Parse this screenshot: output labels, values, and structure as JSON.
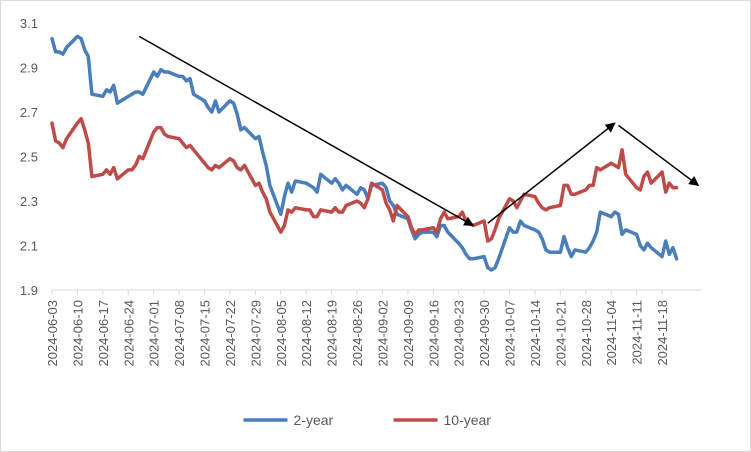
{
  "chart_data": {
    "type": "line",
    "title": "",
    "xlabel": "",
    "ylabel": "",
    "ylim": [
      1.9,
      3.1
    ],
    "y_ticks": [
      "1.9",
      "2.1",
      "2.3",
      "2.5",
      "2.7",
      "2.9",
      "3.1"
    ],
    "x_tick_labels": [
      "2024-06-03",
      "2024-06-10",
      "2024-06-17",
      "2024-06-24",
      "2024-07-01",
      "2024-07-08",
      "2024-07-15",
      "2024-07-22",
      "2024-07-29",
      "2024-08-05",
      "2024-08-12",
      "2024-08-19",
      "2024-08-26",
      "2024-09-02",
      "2024-09-09",
      "2024-09-16",
      "2024-09-23",
      "2024-09-30",
      "2024-10-07",
      "2024-10-14",
      "2024-10-21",
      "2024-10-28",
      "2024-11-04",
      "2024-11-11",
      "2024-11-18"
    ],
    "x_range": [
      "2024-06-03",
      "2024-11-29"
    ],
    "grid": false,
    "legend": "bottom",
    "series": [
      {
        "name": "2-year",
        "color": "#4a7ebb",
        "points": [
          [
            "2024-06-03",
            3.03
          ],
          [
            "2024-06-04",
            2.97
          ],
          [
            "2024-06-05",
            2.97
          ],
          [
            "2024-06-06",
            2.96
          ],
          [
            "2024-06-07",
            2.99
          ],
          [
            "2024-06-10",
            3.04
          ],
          [
            "2024-06-11",
            3.03
          ],
          [
            "2024-06-12",
            2.98
          ],
          [
            "2024-06-13",
            2.95
          ],
          [
            "2024-06-14",
            2.78
          ],
          [
            "2024-06-17",
            2.77
          ],
          [
            "2024-06-18",
            2.8
          ],
          [
            "2024-06-19",
            2.79
          ],
          [
            "2024-06-20",
            2.82
          ],
          [
            "2024-06-21",
            2.74
          ],
          [
            "2024-06-24",
            2.77
          ],
          [
            "2024-06-25",
            2.78
          ],
          [
            "2024-06-26",
            2.79
          ],
          [
            "2024-06-27",
            2.79
          ],
          [
            "2024-06-28",
            2.78
          ],
          [
            "2024-07-01",
            2.88
          ],
          [
            "2024-07-02",
            2.86
          ],
          [
            "2024-07-03",
            2.89
          ],
          [
            "2024-07-04",
            2.88
          ],
          [
            "2024-07-05",
            2.88
          ],
          [
            "2024-07-08",
            2.86
          ],
          [
            "2024-07-09",
            2.86
          ],
          [
            "2024-07-10",
            2.84
          ],
          [
            "2024-07-11",
            2.85
          ],
          [
            "2024-07-12",
            2.78
          ],
          [
            "2024-07-15",
            2.75
          ],
          [
            "2024-07-16",
            2.72
          ],
          [
            "2024-07-17",
            2.7
          ],
          [
            "2024-07-18",
            2.75
          ],
          [
            "2024-07-19",
            2.7
          ],
          [
            "2024-07-22",
            2.75
          ],
          [
            "2024-07-23",
            2.74
          ],
          [
            "2024-07-24",
            2.69
          ],
          [
            "2024-07-25",
            2.62
          ],
          [
            "2024-07-26",
            2.63
          ],
          [
            "2024-07-29",
            2.58
          ],
          [
            "2024-07-30",
            2.59
          ],
          [
            "2024-07-31",
            2.52
          ],
          [
            "2024-08-01",
            2.46
          ],
          [
            "2024-08-02",
            2.37
          ],
          [
            "2024-08-05",
            2.24
          ],
          [
            "2024-08-06",
            2.32
          ],
          [
            "2024-08-07",
            2.38
          ],
          [
            "2024-08-08",
            2.34
          ],
          [
            "2024-08-09",
            2.39
          ],
          [
            "2024-08-12",
            2.38
          ],
          [
            "2024-08-13",
            2.37
          ],
          [
            "2024-08-14",
            2.36
          ],
          [
            "2024-08-15",
            2.34
          ],
          [
            "2024-08-16",
            2.42
          ],
          [
            "2024-08-19",
            2.38
          ],
          [
            "2024-08-20",
            2.4
          ],
          [
            "2024-08-21",
            2.38
          ],
          [
            "2024-08-22",
            2.35
          ],
          [
            "2024-08-23",
            2.37
          ],
          [
            "2024-08-26",
            2.33
          ],
          [
            "2024-08-27",
            2.36
          ],
          [
            "2024-08-28",
            2.35
          ],
          [
            "2024-08-29",
            2.31
          ],
          [
            "2024-08-30",
            2.37
          ],
          [
            "2024-09-02",
            2.38
          ],
          [
            "2024-09-03",
            2.36
          ],
          [
            "2024-09-04",
            2.3
          ],
          [
            "2024-09-05",
            2.28
          ],
          [
            "2024-09-06",
            2.24
          ],
          [
            "2024-09-09",
            2.22
          ],
          [
            "2024-09-10",
            2.17
          ],
          [
            "2024-09-11",
            2.13
          ],
          [
            "2024-09-12",
            2.15
          ],
          [
            "2024-09-13",
            2.16
          ],
          [
            "2024-09-16",
            2.16
          ],
          [
            "2024-09-17",
            2.14
          ],
          [
            "2024-09-18",
            2.19
          ],
          [
            "2024-09-19",
            2.19
          ],
          [
            "2024-09-20",
            2.16
          ],
          [
            "2024-09-23",
            2.11
          ],
          [
            "2024-09-24",
            2.09
          ],
          [
            "2024-09-25",
            2.06
          ],
          [
            "2024-09-26",
            2.04
          ],
          [
            "2024-09-27",
            2.04
          ],
          [
            "2024-09-30",
            2.05
          ],
          [
            "2024-10-01",
            2.0
          ],
          [
            "2024-10-02",
            1.99
          ],
          [
            "2024-10-03",
            2.0
          ],
          [
            "2024-10-04",
            2.04
          ],
          [
            "2024-10-07",
            2.18
          ],
          [
            "2024-10-08",
            2.16
          ],
          [
            "2024-10-09",
            2.16
          ],
          [
            "2024-10-10",
            2.21
          ],
          [
            "2024-10-11",
            2.19
          ],
          [
            "2024-10-14",
            2.17
          ],
          [
            "2024-10-15",
            2.16
          ],
          [
            "2024-10-16",
            2.13
          ],
          [
            "2024-10-17",
            2.08
          ],
          [
            "2024-10-18",
            2.07
          ],
          [
            "2024-10-21",
            2.07
          ],
          [
            "2024-10-22",
            2.14
          ],
          [
            "2024-10-23",
            2.09
          ],
          [
            "2024-10-24",
            2.05
          ],
          [
            "2024-10-25",
            2.08
          ],
          [
            "2024-10-28",
            2.07
          ],
          [
            "2024-10-29",
            2.09
          ],
          [
            "2024-10-30",
            2.12
          ],
          [
            "2024-10-31",
            2.16
          ],
          [
            "2024-11-01",
            2.25
          ],
          [
            "2024-11-04",
            2.23
          ],
          [
            "2024-11-05",
            2.25
          ],
          [
            "2024-11-06",
            2.24
          ],
          [
            "2024-11-07",
            2.15
          ],
          [
            "2024-11-08",
            2.17
          ],
          [
            "2024-11-11",
            2.15
          ],
          [
            "2024-11-12",
            2.1
          ],
          [
            "2024-11-13",
            2.08
          ],
          [
            "2024-11-14",
            2.11
          ],
          [
            "2024-11-15",
            2.09
          ],
          [
            "2024-11-18",
            2.05
          ],
          [
            "2024-11-19",
            2.12
          ],
          [
            "2024-11-20",
            2.06
          ],
          [
            "2024-11-21",
            2.09
          ],
          [
            "2024-11-22",
            2.04
          ]
        ]
      },
      {
        "name": "10-year",
        "color": "#be4b48",
        "points": [
          [
            "2024-06-03",
            2.65
          ],
          [
            "2024-06-04",
            2.57
          ],
          [
            "2024-06-05",
            2.56
          ],
          [
            "2024-06-06",
            2.54
          ],
          [
            "2024-06-07",
            2.58
          ],
          [
            "2024-06-10",
            2.65
          ],
          [
            "2024-06-11",
            2.67
          ],
          [
            "2024-06-12",
            2.62
          ],
          [
            "2024-06-13",
            2.56
          ],
          [
            "2024-06-14",
            2.41
          ],
          [
            "2024-06-17",
            2.42
          ],
          [
            "2024-06-18",
            2.44
          ],
          [
            "2024-06-19",
            2.42
          ],
          [
            "2024-06-20",
            2.45
          ],
          [
            "2024-06-21",
            2.4
          ],
          [
            "2024-06-24",
            2.44
          ],
          [
            "2024-06-25",
            2.44
          ],
          [
            "2024-06-26",
            2.46
          ],
          [
            "2024-06-27",
            2.5
          ],
          [
            "2024-06-28",
            2.49
          ],
          [
            "2024-07-01",
            2.61
          ],
          [
            "2024-07-02",
            2.63
          ],
          [
            "2024-07-03",
            2.63
          ],
          [
            "2024-07-04",
            2.6
          ],
          [
            "2024-07-05",
            2.59
          ],
          [
            "2024-07-08",
            2.58
          ],
          [
            "2024-07-09",
            2.56
          ],
          [
            "2024-07-10",
            2.54
          ],
          [
            "2024-07-11",
            2.55
          ],
          [
            "2024-07-12",
            2.53
          ],
          [
            "2024-07-15",
            2.47
          ],
          [
            "2024-07-16",
            2.45
          ],
          [
            "2024-07-17",
            2.44
          ],
          [
            "2024-07-18",
            2.46
          ],
          [
            "2024-07-19",
            2.45
          ],
          [
            "2024-07-22",
            2.49
          ],
          [
            "2024-07-23",
            2.48
          ],
          [
            "2024-07-24",
            2.45
          ],
          [
            "2024-07-25",
            2.44
          ],
          [
            "2024-07-26",
            2.46
          ],
          [
            "2024-07-29",
            2.37
          ],
          [
            "2024-07-30",
            2.38
          ],
          [
            "2024-07-31",
            2.34
          ],
          [
            "2024-08-01",
            2.31
          ],
          [
            "2024-08-02",
            2.25
          ],
          [
            "2024-08-05",
            2.16
          ],
          [
            "2024-08-06",
            2.19
          ],
          [
            "2024-08-07",
            2.26
          ],
          [
            "2024-08-08",
            2.25
          ],
          [
            "2024-08-09",
            2.27
          ],
          [
            "2024-08-12",
            2.26
          ],
          [
            "2024-08-13",
            2.26
          ],
          [
            "2024-08-14",
            2.23
          ],
          [
            "2024-08-15",
            2.23
          ],
          [
            "2024-08-16",
            2.26
          ],
          [
            "2024-08-19",
            2.25
          ],
          [
            "2024-08-20",
            2.27
          ],
          [
            "2024-08-21",
            2.25
          ],
          [
            "2024-08-22",
            2.25
          ],
          [
            "2024-08-23",
            2.28
          ],
          [
            "2024-08-26",
            2.3
          ],
          [
            "2024-08-27",
            2.29
          ],
          [
            "2024-08-28",
            2.27
          ],
          [
            "2024-08-29",
            2.31
          ],
          [
            "2024-08-30",
            2.38
          ],
          [
            "2024-09-02",
            2.35
          ],
          [
            "2024-09-03",
            2.29
          ],
          [
            "2024-09-04",
            2.26
          ],
          [
            "2024-09-05",
            2.21
          ],
          [
            "2024-09-06",
            2.28
          ],
          [
            "2024-09-09",
            2.23
          ],
          [
            "2024-09-10",
            2.18
          ],
          [
            "2024-09-11",
            2.15
          ],
          [
            "2024-09-12",
            2.17
          ],
          [
            "2024-09-13",
            2.17
          ],
          [
            "2024-09-16",
            2.18
          ],
          [
            "2024-09-17",
            2.16
          ],
          [
            "2024-09-18",
            2.22
          ],
          [
            "2024-09-19",
            2.25
          ],
          [
            "2024-09-20",
            2.22
          ],
          [
            "2024-09-23",
            2.23
          ],
          [
            "2024-09-24",
            2.25
          ],
          [
            "2024-09-25",
            2.21
          ],
          [
            "2024-09-26",
            2.2
          ],
          [
            "2024-09-27",
            2.19
          ],
          [
            "2024-09-30",
            2.21
          ],
          [
            "2024-10-01",
            2.12
          ],
          [
            "2024-10-02",
            2.13
          ],
          [
            "2024-10-03",
            2.17
          ],
          [
            "2024-10-04",
            2.22
          ],
          [
            "2024-10-07",
            2.31
          ],
          [
            "2024-10-08",
            2.3
          ],
          [
            "2024-10-09",
            2.27
          ],
          [
            "2024-10-10",
            2.3
          ],
          [
            "2024-10-11",
            2.33
          ],
          [
            "2024-10-14",
            2.32
          ],
          [
            "2024-10-15",
            2.29
          ],
          [
            "2024-10-16",
            2.27
          ],
          [
            "2024-10-17",
            2.26
          ],
          [
            "2024-10-18",
            2.27
          ],
          [
            "2024-10-21",
            2.28
          ],
          [
            "2024-10-22",
            2.37
          ],
          [
            "2024-10-23",
            2.37
          ],
          [
            "2024-10-24",
            2.33
          ],
          [
            "2024-10-25",
            2.33
          ],
          [
            "2024-10-28",
            2.35
          ],
          [
            "2024-10-29",
            2.37
          ],
          [
            "2024-10-30",
            2.37
          ],
          [
            "2024-10-31",
            2.45
          ],
          [
            "2024-11-01",
            2.44
          ],
          [
            "2024-11-04",
            2.47
          ],
          [
            "2024-11-05",
            2.46
          ],
          [
            "2024-11-06",
            2.45
          ],
          [
            "2024-11-07",
            2.53
          ],
          [
            "2024-11-08",
            2.42
          ],
          [
            "2024-11-11",
            2.36
          ],
          [
            "2024-11-12",
            2.35
          ],
          [
            "2024-11-13",
            2.41
          ],
          [
            "2024-11-14",
            2.43
          ],
          [
            "2024-11-15",
            2.38
          ],
          [
            "2024-11-18",
            2.43
          ],
          [
            "2024-11-19",
            2.34
          ],
          [
            "2024-11-20",
            2.38
          ],
          [
            "2024-11-21",
            2.36
          ],
          [
            "2024-11-22",
            2.36
          ]
        ]
      }
    ],
    "annotations": [
      {
        "kind": "arrow",
        "from": [
          "2024-06-27",
          3.04
        ],
        "to": [
          "2024-09-27",
          2.19
        ]
      },
      {
        "kind": "arrow",
        "from": [
          "2024-10-01",
          2.2
        ],
        "to": [
          "2024-11-05",
          2.65
        ]
      },
      {
        "kind": "arrow",
        "from": [
          "2024-11-06",
          2.64
        ],
        "to": [
          "2024-11-28",
          2.37
        ]
      }
    ]
  }
}
